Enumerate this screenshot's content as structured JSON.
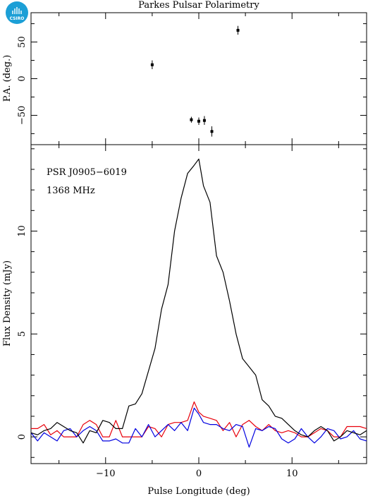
{
  "logo": {
    "text": "CSIRO",
    "color": "#1c9fd6"
  },
  "chart_data": [
    {
      "type": "scatter",
      "title": "Parkes Pulsar Polarimetry",
      "ylabel": "P.A. (deg.)",
      "xlim": [
        -18,
        18
      ],
      "ylim": [
        -90,
        90
      ],
      "yticks": [
        -50,
        0,
        50
      ],
      "grid": false,
      "series": [
        {
          "x": [
            -5.0,
            -0.8,
            0.0,
            0.6,
            1.4,
            4.2
          ],
          "y": [
            19,
            -56,
            -58,
            -57,
            -72,
            66
          ],
          "yerr": [
            6,
            4,
            5,
            6,
            7,
            6
          ],
          "color": "#000000"
        }
      ]
    },
    {
      "type": "line",
      "xlabel": "Pulse Longitude (deg)",
      "ylabel": "Flux Density (mJy)",
      "xlim": [
        -18,
        18
      ],
      "ylim": [
        -1.3,
        14.2
      ],
      "xticks": [
        -10,
        0,
        10
      ],
      "yticks": [
        0,
        5,
        10
      ],
      "grid": false,
      "annotations": [
        "PSR J0905−6019",
        "1368 MHz"
      ],
      "x": [
        -18.0,
        -17.3,
        -16.6,
        -15.9,
        -15.2,
        -14.5,
        -13.8,
        -13.1,
        -12.4,
        -11.7,
        -11.0,
        -10.3,
        -9.6,
        -8.9,
        -8.2,
        -7.5,
        -6.8,
        -6.1,
        -5.4,
        -4.7,
        -4.0,
        -3.3,
        -2.6,
        -1.9,
        -1.2,
        -0.5,
        0.0,
        0.5,
        1.2,
        1.9,
        2.6,
        3.3,
        4.0,
        4.7,
        5.4,
        6.1,
        6.8,
        7.5,
        8.2,
        8.9,
        9.6,
        10.3,
        11.0,
        11.7,
        12.4,
        13.1,
        13.8,
        14.5,
        15.2,
        15.9,
        16.6,
        17.3,
        18.0
      ],
      "series": [
        {
          "color": "#000000",
          "values": [
            0.2,
            0.1,
            0.3,
            0.4,
            0.7,
            0.5,
            0.3,
            0.2,
            -0.3,
            0.3,
            0.2,
            0.8,
            0.7,
            0.4,
            0.4,
            1.5,
            1.6,
            2.1,
            3.2,
            4.3,
            6.2,
            7.4,
            10.0,
            11.6,
            12.8,
            13.2,
            13.5,
            12.2,
            11.4,
            8.8,
            8.0,
            6.6,
            5.0,
            3.8,
            3.4,
            3.0,
            1.8,
            1.5,
            1.0,
            0.9,
            0.6,
            0.3,
            0.1,
            0.0,
            0.3,
            0.5,
            0.3,
            -0.2,
            0.0,
            0.3,
            0.2,
            0.1,
            0.3
          ]
        },
        {
          "color": "#e8000b",
          "values": [
            0.4,
            0.4,
            0.6,
            0.1,
            0.3,
            0.0,
            0.0,
            0.0,
            0.6,
            0.8,
            0.6,
            0.0,
            0.0,
            0.8,
            0.0,
            0.0,
            0.0,
            0.0,
            0.5,
            0.4,
            0.0,
            0.6,
            0.7,
            0.7,
            0.8,
            1.7,
            1.2,
            1.0,
            0.9,
            0.8,
            0.3,
            0.7,
            0.0,
            0.6,
            0.8,
            0.5,
            0.3,
            0.6,
            0.3,
            0.2,
            0.3,
            0.2,
            0.0,
            0.0,
            0.2,
            0.4,
            0.3,
            0.0,
            0.0,
            0.5,
            0.5,
            0.5,
            0.4
          ]
        },
        {
          "color": "#0000e0",
          "values": [
            0.2,
            -0.2,
            0.2,
            0.0,
            -0.2,
            0.3,
            0.4,
            0.0,
            0.3,
            0.5,
            0.3,
            -0.2,
            -0.2,
            -0.1,
            -0.3,
            -0.3,
            0.4,
            0.0,
            0.6,
            0.0,
            0.3,
            0.6,
            0.3,
            0.7,
            0.3,
            1.4,
            1.1,
            0.7,
            0.6,
            0.6,
            0.4,
            0.3,
            0.6,
            0.5,
            -0.5,
            0.4,
            0.3,
            0.5,
            0.4,
            -0.1,
            -0.3,
            -0.1,
            0.4,
            0.0,
            -0.3,
            0.0,
            0.4,
            0.3,
            -0.1,
            0.0,
            0.3,
            -0.1,
            -0.2
          ]
        }
      ]
    }
  ]
}
